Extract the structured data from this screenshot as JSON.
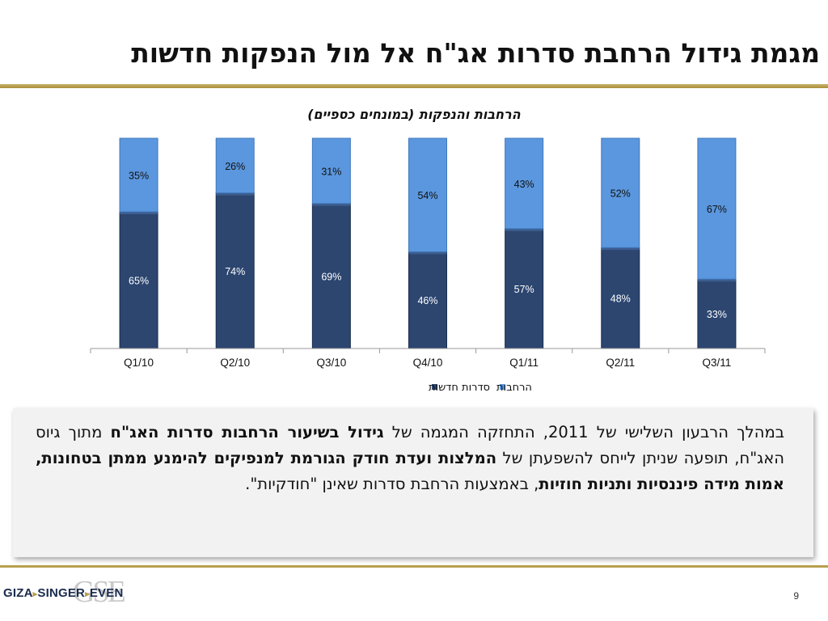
{
  "slide": {
    "title": "מגמת גידול הרחבת סדרות אג\"ח אל מול הנפקות חדשות",
    "page_number": "9"
  },
  "logo": {
    "text": "GIZA SINGER EVEN",
    "monogram": "GSE"
  },
  "colors": {
    "new_series": "#2c4670",
    "expansions": "#5b97de",
    "gold": "#b8a04e"
  },
  "chart_data": {
    "type": "bar",
    "stacked": true,
    "title": "הרחבות והנפקות (במונחים כספיים)",
    "categories": [
      "Q1/10",
      "Q2/10",
      "Q3/10",
      "Q4/10",
      "Q1/11",
      "Q2/11",
      "Q3/11"
    ],
    "series": [
      {
        "name": "סדרות חדשות",
        "values": [
          65,
          74,
          69,
          46,
          57,
          48,
          33
        ],
        "labels": [
          "65%",
          "74%",
          "69%",
          "46%",
          "57%",
          "48%",
          "33%"
        ]
      },
      {
        "name": "הרחבות",
        "values": [
          35,
          26,
          31,
          54,
          43,
          52,
          67
        ],
        "labels": [
          "35%",
          "26%",
          "31%",
          "54%",
          "43%",
          "52%",
          "67%"
        ]
      }
    ],
    "ylim": [
      0,
      100
    ],
    "grid": false,
    "legend": "bottom"
  },
  "body_text": [
    {
      "t": "במהלך הרבעון השלישי של 2011, התחזקה המגמה של ",
      "b": false
    },
    {
      "t": "גידול בשיעור הרחבות סדרות האג\"ח",
      "b": true
    },
    {
      "t": " מתוך גיוס האג\"ח, תופעה שניתן לייחס להשפעתן של ",
      "b": false
    },
    {
      "t": "המלצות ועדת חודק הגורמת למנפיקים להימנע ממתן בטחונות, אמות מידה פיננסיות ותניות חוזיות",
      "b": true
    },
    {
      "t": ", באמצעות הרחבת סדרות שאינן \"חודקיות\".",
      "b": false
    }
  ]
}
